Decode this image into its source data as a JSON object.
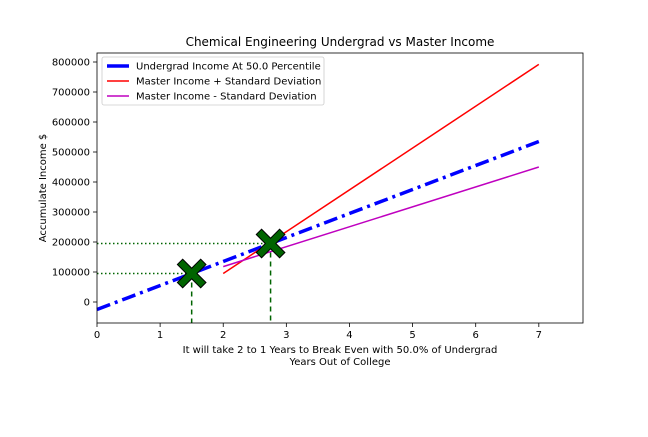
{
  "chart_data": {
    "type": "line",
    "title": "Chemical Engineering Undergrad vs Master Income",
    "xlabel_line1": "It will take 2 to 1 Years to Break Even with 50.0% of Undergrad",
    "xlabel_line2": "Years Out of College",
    "ylabel": "Accumulate Income $",
    "xlim": [
      0,
      7.7
    ],
    "ylim": [
      -70000,
      830000
    ],
    "x_ticks": [
      0,
      1,
      2,
      3,
      4,
      5,
      6,
      7
    ],
    "x_tick_labels": [
      "0",
      "1",
      "2",
      "3",
      "4",
      "5",
      "6",
      "7"
    ],
    "y_ticks": [
      0,
      100000,
      200000,
      300000,
      400000,
      500000,
      600000,
      700000,
      800000
    ],
    "y_tick_labels": [
      "0",
      "100000",
      "200000",
      "300000",
      "400000",
      "500000",
      "600000",
      "700000",
      "800000"
    ],
    "legend_position": "top-left",
    "series": [
      {
        "name": "Undergrad Income At 50.0 Percentile",
        "color": "#0000ff",
        "style": "dashdot",
        "x": [
          0,
          7
        ],
        "y": [
          -25000,
          535000
        ]
      },
      {
        "name": "Master Income + Standard Deviation",
        "color": "#ff0000",
        "style": "solid",
        "x": [
          2,
          7
        ],
        "y": [
          95000,
          792000
        ]
      },
      {
        "name": "Master Income - Standard Deviation",
        "color": "#bf00bf",
        "style": "solid",
        "x": [
          2,
          7
        ],
        "y": [
          118000,
          450000
        ]
      }
    ],
    "break_even_points": [
      {
        "x": 1.5,
        "y": 95000
      },
      {
        "x": 2.75,
        "y": 195000
      }
    ],
    "marker_color": "#006400"
  }
}
